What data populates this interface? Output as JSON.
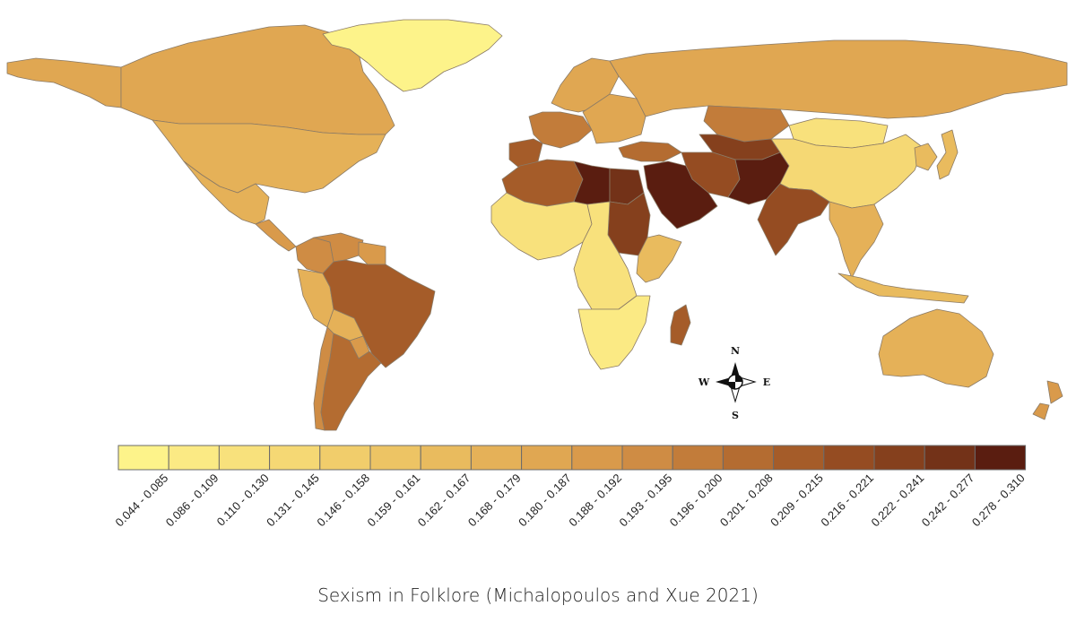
{
  "caption": "Sexism in Folklore (Michalopoulos and Xue 2021)",
  "compass": {
    "north": "N",
    "south": "S",
    "east": "E",
    "west": "W"
  },
  "legend": {
    "bins": [
      {
        "label": "0.044 - 0.085",
        "color": "#fdf38a"
      },
      {
        "label": "0.086 - 0.109",
        "color": "#fbea84"
      },
      {
        "label": "0.110 - 0.130",
        "color": "#f8e17c"
      },
      {
        "label": "0.131 - 0.145",
        "color": "#f5d874"
      },
      {
        "label": "0.146 - 0.158",
        "color": "#f1cd6b"
      },
      {
        "label": "0.159 - 0.161",
        "color": "#edc464"
      },
      {
        "label": "0.162 - 0.167",
        "color": "#e9bb5e"
      },
      {
        "label": "0.168 - 0.179",
        "color": "#e5b158"
      },
      {
        "label": "0.180 - 0.187",
        "color": "#e0a752"
      },
      {
        "label": "0.188 - 0.192",
        "color": "#d99a4b"
      },
      {
        "label": "0.193 - 0.195",
        "color": "#cf8c44"
      },
      {
        "label": "0.196 - 0.200",
        "color": "#c27c3a"
      },
      {
        "label": "0.201 - 0.208",
        "color": "#b46c31"
      },
      {
        "label": "0.209 - 0.215",
        "color": "#a55c29"
      },
      {
        "label": "0.216 - 0.221",
        "color": "#954c22"
      },
      {
        "label": "0.222 - 0.241",
        "color": "#85401d"
      },
      {
        "label": "0.242 - 0.277",
        "color": "#733218"
      },
      {
        "label": "0.278 - 0.310",
        "color": "#5a1d10"
      }
    ]
  },
  "regions": [
    {
      "name": "Greenland",
      "bin": 0
    },
    {
      "name": "Canada",
      "bin": 8
    },
    {
      "name": "Alaska",
      "bin": 8
    },
    {
      "name": "United States",
      "bin": 7
    },
    {
      "name": "Mexico",
      "bin": 7
    },
    {
      "name": "Central America",
      "bin": 9
    },
    {
      "name": "Colombia",
      "bin": 10
    },
    {
      "name": "Venezuela",
      "bin": 10
    },
    {
      "name": "Guianas",
      "bin": 9
    },
    {
      "name": "Peru",
      "bin": 7
    },
    {
      "name": "Brazil",
      "bin": 13
    },
    {
      "name": "Bolivia",
      "bin": 7
    },
    {
      "name": "Paraguay",
      "bin": 9
    },
    {
      "name": "Chile",
      "bin": 10
    },
    {
      "name": "Argentina",
      "bin": 12
    },
    {
      "name": "Western Europe",
      "bin": 11
    },
    {
      "name": "Iberia",
      "bin": 13
    },
    {
      "name": "Scandinavia",
      "bin": 8
    },
    {
      "name": "Eastern Europe",
      "bin": 8
    },
    {
      "name": "Russia",
      "bin": 8
    },
    {
      "name": "Kazakhstan",
      "bin": 11
    },
    {
      "name": "Central Asia",
      "bin": 15
    },
    {
      "name": "Turkey",
      "bin": 12
    },
    {
      "name": "Iran",
      "bin": 14
    },
    {
      "name": "Afghanistan / Pakistan",
      "bin": 17
    },
    {
      "name": "Mongolia",
      "bin": 2
    },
    {
      "name": "China",
      "bin": 3
    },
    {
      "name": "Korea / Japan",
      "bin": 6
    },
    {
      "name": "India",
      "bin": 14
    },
    {
      "name": "Southeast Asia",
      "bin": 7
    },
    {
      "name": "Indonesia",
      "bin": 6
    },
    {
      "name": "Australia",
      "bin": 7
    },
    {
      "name": "New Zealand",
      "bin": 9
    },
    {
      "name": "Morocco / Algeria",
      "bin": 13
    },
    {
      "name": "Libya",
      "bin": 17
    },
    {
      "name": "Egypt",
      "bin": 16
    },
    {
      "name": "Sudan",
      "bin": 15
    },
    {
      "name": "Arabian Peninsula",
      "bin": 17
    },
    {
      "name": "West Africa",
      "bin": 2
    },
    {
      "name": "Central Africa",
      "bin": 2
    },
    {
      "name": "Horn of Africa",
      "bin": 6
    },
    {
      "name": "Southern Africa",
      "bin": 1
    },
    {
      "name": "Madagascar",
      "bin": 13
    }
  ]
}
